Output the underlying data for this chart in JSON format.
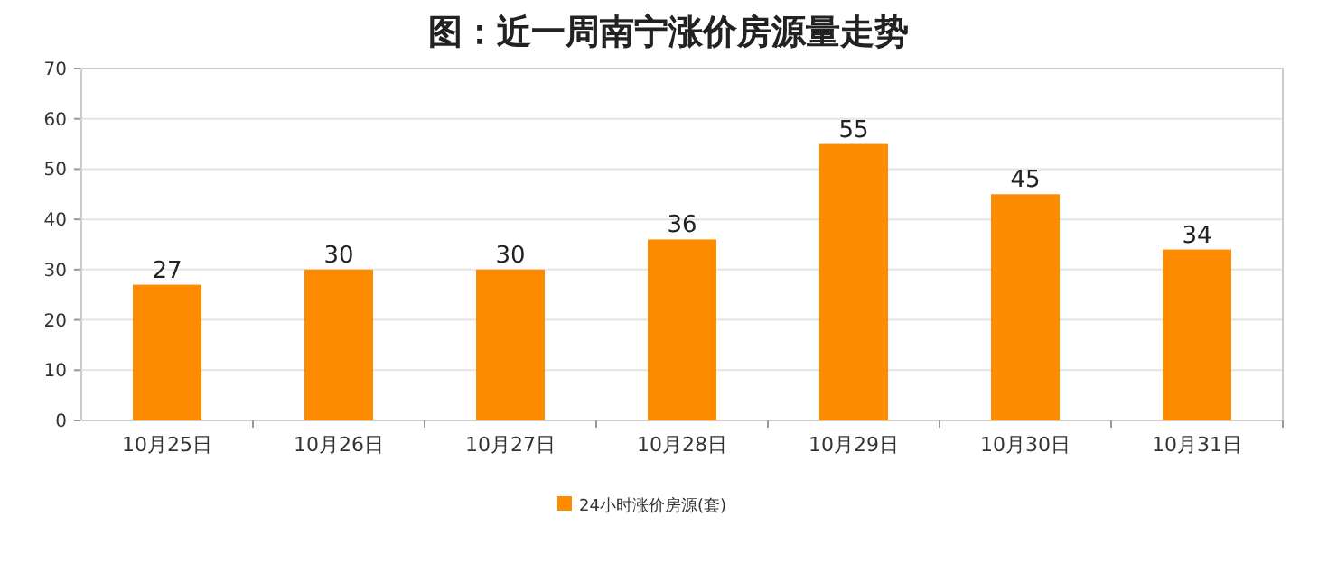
{
  "chart_data": {
    "type": "bar",
    "title": "图：近一周南宁涨价房源量走势",
    "categories": [
      "10月25日",
      "10月26日",
      "10月27日",
      "10月28日",
      "10月29日",
      "10月30日",
      "10月31日"
    ],
    "series": [
      {
        "name": "24小时涨价房源(套)",
        "color": "#ff8c00",
        "values": [
          27,
          30,
          30,
          36,
          55,
          45,
          34
        ]
      }
    ],
    "ylim": [
      0,
      70
    ],
    "yticks": [
      0,
      10,
      20,
      30,
      40,
      50,
      60,
      70
    ],
    "grid": "y",
    "legend": "bottom",
    "data_labels": true
  }
}
